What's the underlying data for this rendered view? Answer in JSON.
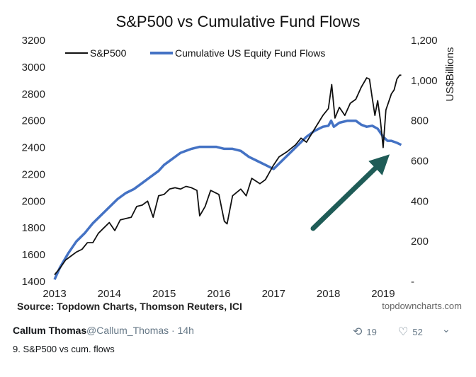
{
  "colors": {
    "sp500_line": "#111111",
    "fund_flows_line": "#4472c4",
    "arrow": "#1f5c57",
    "axis_text": "#222222",
    "brand": "#666666"
  },
  "chart_data": {
    "type": "line",
    "title": "S&P500 vs Cumulative Fund Flows",
    "x_ticks": [
      "2013",
      "2014",
      "2015",
      "2016",
      "2017",
      "2018",
      "2019"
    ],
    "xlim": [
      2013,
      2019.35
    ],
    "y_left": {
      "ticks": [
        "3200",
        "3000",
        "2800",
        "2600",
        "2400",
        "2200",
        "2000",
        "1800",
        "1600",
        "1400"
      ],
      "ylim": [
        1400,
        3200
      ]
    },
    "y_right": {
      "label": "US$Billions",
      "ticks": [
        "1,200",
        "1,000",
        "800",
        "600",
        "400",
        "200",
        "-"
      ],
      "ylim": [
        0,
        1200
      ]
    },
    "legend": {
      "placement": "top-left",
      "entries": [
        "S&P500",
        "Cumulative US Equity Fund Flows"
      ]
    },
    "series": [
      {
        "name": "S&P500",
        "axis": "left",
        "color": "#111111",
        "points": [
          [
            2013.0,
            1450
          ],
          [
            2013.1,
            1500
          ],
          [
            2013.2,
            1560
          ],
          [
            2013.3,
            1590
          ],
          [
            2013.4,
            1620
          ],
          [
            2013.5,
            1640
          ],
          [
            2013.6,
            1690
          ],
          [
            2013.7,
            1690
          ],
          [
            2013.8,
            1760
          ],
          [
            2013.9,
            1800
          ],
          [
            2014.0,
            1840
          ],
          [
            2014.1,
            1780
          ],
          [
            2014.2,
            1860
          ],
          [
            2014.3,
            1870
          ],
          [
            2014.4,
            1880
          ],
          [
            2014.5,
            1960
          ],
          [
            2014.6,
            1970
          ],
          [
            2014.7,
            2000
          ],
          [
            2014.8,
            1880
          ],
          [
            2014.9,
            2040
          ],
          [
            2015.0,
            2050
          ],
          [
            2015.1,
            2090
          ],
          [
            2015.2,
            2100
          ],
          [
            2015.3,
            2090
          ],
          [
            2015.4,
            2110
          ],
          [
            2015.5,
            2100
          ],
          [
            2015.6,
            2080
          ],
          [
            2015.65,
            1890
          ],
          [
            2015.75,
            1960
          ],
          [
            2015.85,
            2080
          ],
          [
            2016.0,
            2050
          ],
          [
            2016.1,
            1850
          ],
          [
            2016.15,
            1830
          ],
          [
            2016.25,
            2040
          ],
          [
            2016.4,
            2090
          ],
          [
            2016.5,
            2040
          ],
          [
            2016.6,
            2170
          ],
          [
            2016.75,
            2130
          ],
          [
            2016.85,
            2160
          ],
          [
            2017.0,
            2270
          ],
          [
            2017.1,
            2330
          ],
          [
            2017.25,
            2370
          ],
          [
            2017.4,
            2420
          ],
          [
            2017.5,
            2470
          ],
          [
            2017.6,
            2440
          ],
          [
            2017.75,
            2540
          ],
          [
            2017.9,
            2640
          ],
          [
            2018.0,
            2690
          ],
          [
            2018.06,
            2870
          ],
          [
            2018.12,
            2620
          ],
          [
            2018.2,
            2700
          ],
          [
            2018.3,
            2640
          ],
          [
            2018.4,
            2730
          ],
          [
            2018.5,
            2760
          ],
          [
            2018.6,
            2850
          ],
          [
            2018.7,
            2920
          ],
          [
            2018.75,
            2910
          ],
          [
            2018.8,
            2770
          ],
          [
            2018.85,
            2640
          ],
          [
            2018.9,
            2750
          ],
          [
            2018.95,
            2600
          ],
          [
            2019.0,
            2400
          ],
          [
            2019.05,
            2680
          ],
          [
            2019.1,
            2740
          ],
          [
            2019.15,
            2800
          ],
          [
            2019.2,
            2830
          ],
          [
            2019.25,
            2910
          ],
          [
            2019.3,
            2940
          ],
          [
            2019.33,
            2940
          ]
        ]
      },
      {
        "name": "Cumulative US Equity Fund Flows",
        "axis": "right",
        "color": "#4472c4",
        "points": [
          [
            2013.0,
            10
          ],
          [
            2013.1,
            70
          ],
          [
            2013.25,
            140
          ],
          [
            2013.4,
            200
          ],
          [
            2013.55,
            240
          ],
          [
            2013.7,
            290
          ],
          [
            2013.85,
            330
          ],
          [
            2014.0,
            370
          ],
          [
            2014.15,
            410
          ],
          [
            2014.3,
            440
          ],
          [
            2014.45,
            460
          ],
          [
            2014.6,
            490
          ],
          [
            2014.75,
            520
          ],
          [
            2014.9,
            550
          ],
          [
            2015.0,
            580
          ],
          [
            2015.15,
            610
          ],
          [
            2015.3,
            640
          ],
          [
            2015.5,
            660
          ],
          [
            2015.65,
            670
          ],
          [
            2015.8,
            670
          ],
          [
            2015.95,
            670
          ],
          [
            2016.1,
            660
          ],
          [
            2016.25,
            660
          ],
          [
            2016.4,
            650
          ],
          [
            2016.55,
            620
          ],
          [
            2016.7,
            600
          ],
          [
            2016.85,
            580
          ],
          [
            2017.0,
            560
          ],
          [
            2017.15,
            600
          ],
          [
            2017.3,
            640
          ],
          [
            2017.45,
            680
          ],
          [
            2017.6,
            720
          ],
          [
            2017.75,
            750
          ],
          [
            2017.9,
            770
          ],
          [
            2018.0,
            775
          ],
          [
            2018.05,
            800
          ],
          [
            2018.1,
            770
          ],
          [
            2018.2,
            790
          ],
          [
            2018.35,
            800
          ],
          [
            2018.5,
            800
          ],
          [
            2018.6,
            780
          ],
          [
            2018.7,
            770
          ],
          [
            2018.8,
            775
          ],
          [
            2018.9,
            760
          ],
          [
            2019.0,
            720
          ],
          [
            2019.08,
            700
          ],
          [
            2019.15,
            700
          ],
          [
            2019.25,
            690
          ],
          [
            2019.33,
            680
          ]
        ]
      }
    ],
    "source": "Source: Topdown Charts, Thomson Reuters, ICI",
    "watermark": "topdowncharts.com"
  },
  "tweet": {
    "author": "Callum Thomas",
    "handle_time": "@Callum_Thomas · 14h",
    "text": "9. S&P500 vs cum. flows",
    "retweet_count": "19",
    "like_count": "52",
    "retweet_glyph": "⟲",
    "like_glyph": "♡",
    "more_glyph": "⌄"
  }
}
